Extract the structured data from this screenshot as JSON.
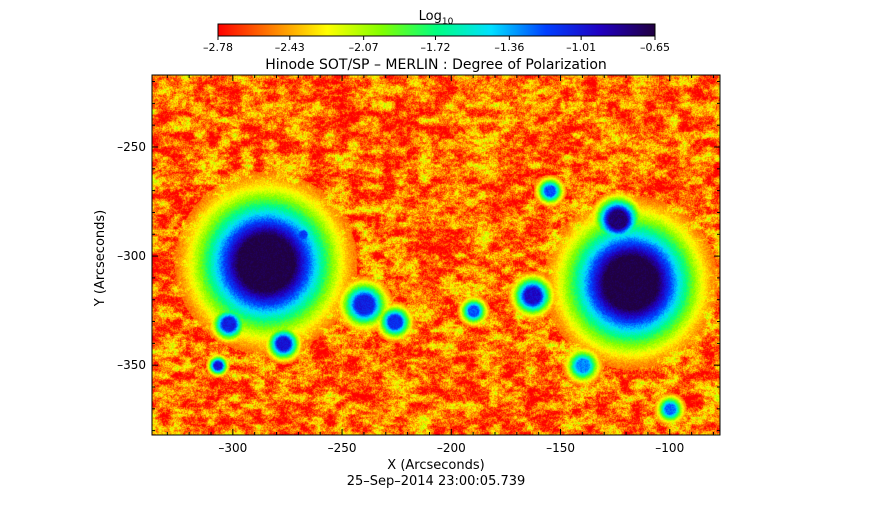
{
  "chart_data": {
    "type": "heatmap",
    "title": "Hinode SOT/SP – MERLIN : Degree of Polarization",
    "xlabel": "X (Arcseconds)",
    "ylabel": "Y (Arcseconds)",
    "timestamp": "25–Sep–2014 23:00:05.739",
    "xlim": [
      -337,
      -77
    ],
    "ylim": [
      -382,
      -217
    ],
    "x_ticks": [
      -300,
      -250,
      -200,
      -150,
      -100
    ],
    "y_ticks": [
      -250,
      -300,
      -350
    ],
    "x_tick_labels": [
      "–300",
      "–250",
      "–200",
      "–150",
      "–100"
    ],
    "y_tick_labels": [
      "–250",
      "–300",
      "–350"
    ],
    "colorbar": {
      "title_base": "Log",
      "title_sub": "10",
      "range": [
        -2.78,
        -0.65
      ],
      "ticks": [
        -2.78,
        -2.43,
        -2.07,
        -1.72,
        -1.36,
        -1.01,
        -0.65
      ],
      "tick_labels": [
        "–2.78",
        "–2.43",
        "–2.07",
        "–1.72",
        "–1.36",
        "–1.01",
        "–0.65"
      ],
      "colormap": [
        "#ff0000",
        "#ff8000",
        "#ffff00",
        "#80ff00",
        "#00ff80",
        "#00e0ff",
        "#0040ff",
        "#2000c0",
        "#200040"
      ]
    },
    "features": [
      {
        "kind": "sunspot",
        "x": -285,
        "y": -303,
        "radius": 22,
        "peak": -0.65
      },
      {
        "kind": "sunspot",
        "x": -118,
        "y": -312,
        "radius": 21,
        "peak": -0.65
      },
      {
        "kind": "pore",
        "x": -124,
        "y": -283,
        "radius": 7,
        "peak": -0.75
      },
      {
        "kind": "pore",
        "x": -163,
        "y": -318,
        "radius": 6,
        "peak": -0.95
      },
      {
        "kind": "pore",
        "x": -277,
        "y": -340,
        "radius": 5,
        "peak": -1.0
      },
      {
        "kind": "pore",
        "x": -302,
        "y": -331,
        "radius": 5,
        "peak": -1.05
      },
      {
        "kind": "pore",
        "x": -240,
        "y": -322,
        "radius": 7,
        "peak": -1.05
      },
      {
        "kind": "pore",
        "x": -226,
        "y": -330,
        "radius": 5,
        "peak": -1.1
      },
      {
        "kind": "pore",
        "x": -307,
        "y": -350,
        "radius": 3,
        "peak": -1.0
      },
      {
        "kind": "pore",
        "x": -268,
        "y": -290,
        "radius": 3,
        "peak": -1.15
      },
      {
        "kind": "pore",
        "x": -190,
        "y": -325,
        "radius": 4,
        "peak": -1.2
      },
      {
        "kind": "pore",
        "x": -140,
        "y": -350,
        "radius": 5,
        "peak": -1.3
      },
      {
        "kind": "pore",
        "x": -100,
        "y": -370,
        "radius": 4,
        "peak": -1.25
      },
      {
        "kind": "pore",
        "x": -155,
        "y": -270,
        "radius": 4,
        "peak": -1.2
      }
    ],
    "background_level": -2.55
  }
}
